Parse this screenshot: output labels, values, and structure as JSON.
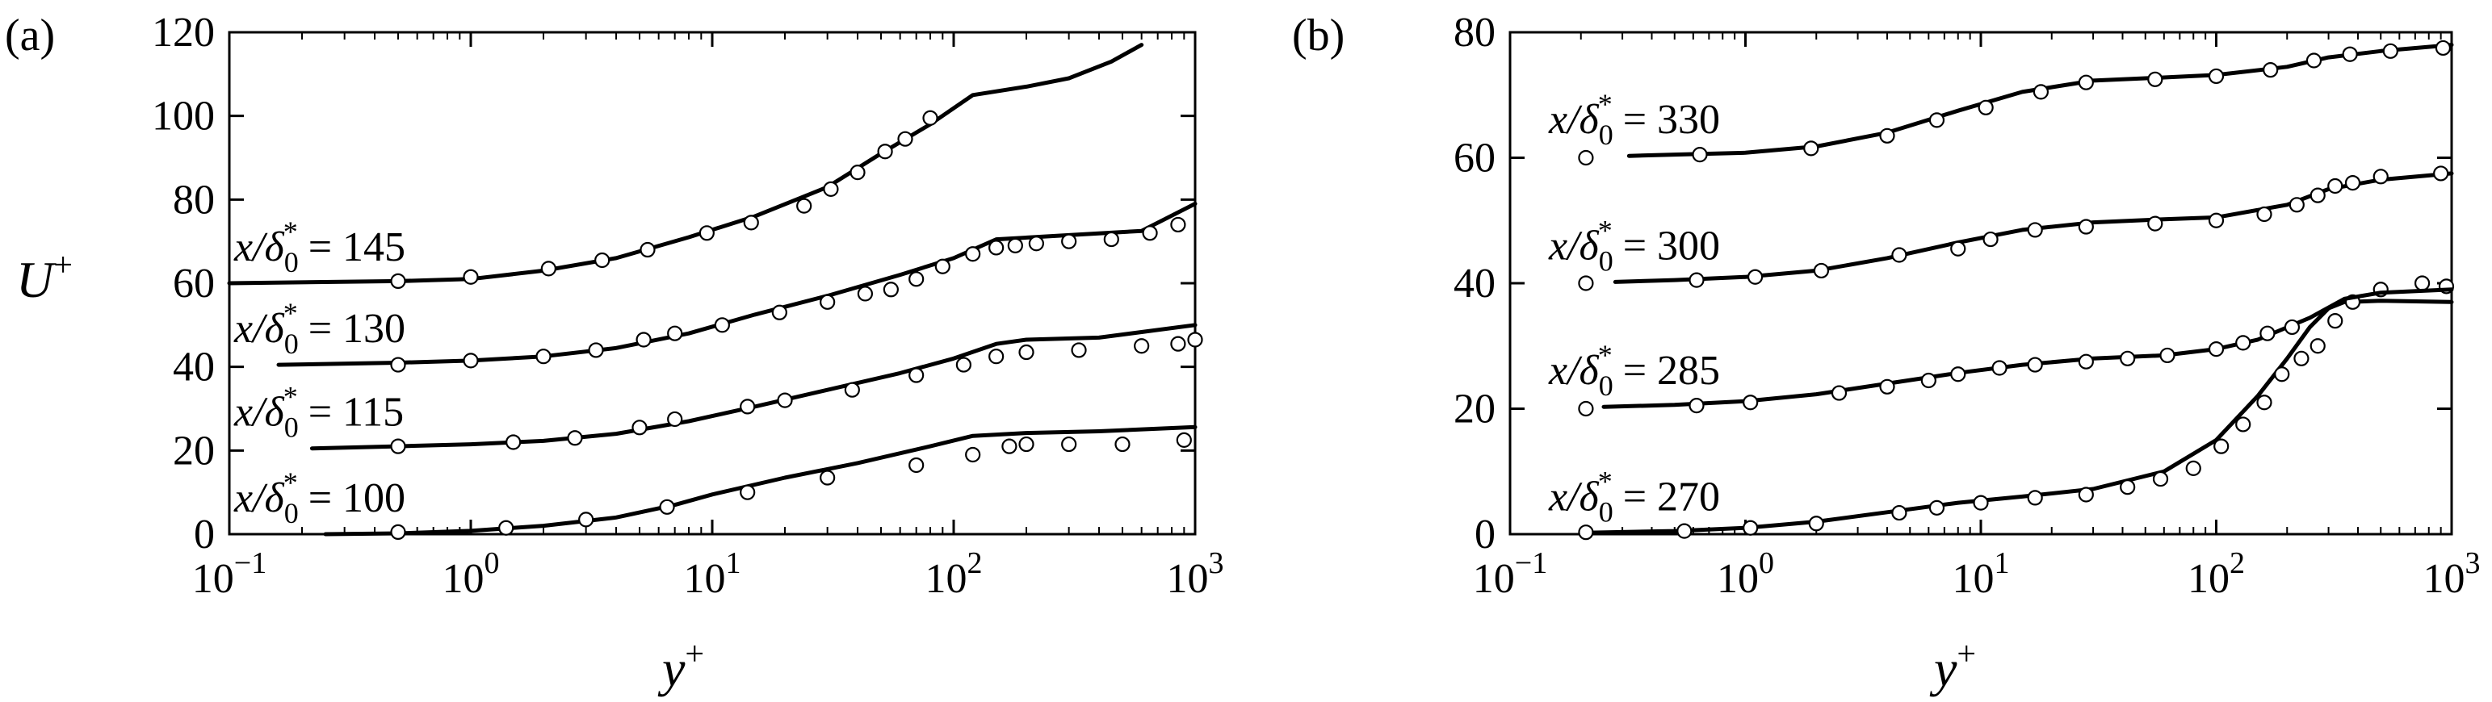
{
  "chart_data": [
    {
      "panel": "(a)",
      "type": "line",
      "xlabel": "y+",
      "ylabel": "U+",
      "xscale": "log",
      "xlim": [
        0.1,
        1000
      ],
      "ylim": [
        0,
        120
      ],
      "xtick_labels": [
        "10−1",
        "100",
        "101",
        "102",
        "103"
      ],
      "ytick_values": [
        0,
        20,
        40,
        60,
        80,
        100,
        120
      ],
      "series": [
        {
          "name": "x/δ0* = 100",
          "line": {
            "x": [
              0.25,
              0.5,
              1,
              2,
              4,
              7,
              10,
              20,
              40,
              80,
              120,
              200,
              400,
              1000
            ],
            "y": [
              0,
              0.2,
              0.8,
              2,
              4,
              7,
              9.5,
              13.5,
              17,
              21,
              23.5,
              24.2,
              24.6,
              25.6
            ]
          },
          "markers": {
            "x": [
              0.5,
              1.4,
              3,
              6.5,
              14,
              30,
              70,
              120,
              170,
              200,
              300,
              500,
              900
            ],
            "y": [
              0.5,
              1.5,
              3.5,
              6.5,
              10,
              13.5,
              16.5,
              19,
              21,
              21.5,
              21.5,
              21.5,
              22.5
            ]
          }
        },
        {
          "name": "x/δ0* = 115",
          "line": {
            "x": [
              0.22,
              0.5,
              1,
              2,
              4,
              8,
              15,
              30,
              60,
              100,
              150,
              200,
              400,
              1000
            ],
            "y": [
              20.5,
              21,
              21.5,
              22.3,
              24,
              27,
              30.5,
              34.5,
              38.5,
              42,
              45.5,
              46.5,
              47,
              50
            ]
          },
          "markers": {
            "x": [
              0.5,
              1.5,
              2.7,
              5,
              7,
              14,
              20,
              38,
              70,
              110,
              150,
              200,
              330,
              600,
              850,
              1000
            ],
            "y": [
              21,
              22,
              23,
              25.5,
              27.5,
              30.5,
              32,
              34.5,
              38,
              40.5,
              42.5,
              43.5,
              44,
              45,
              45.5,
              46.5
            ]
          }
        },
        {
          "name": "x/δ0* = 130",
          "line": {
            "x": [
              0.16,
              0.5,
              1,
              2,
              4,
              8,
              15,
              30,
              60,
              100,
              150,
              300,
              600,
              1000
            ],
            "y": [
              40.5,
              41,
              41.5,
              42.5,
              44.5,
              48,
              52.5,
              57,
              62,
              66,
              70.5,
              71.5,
              72.5,
              79
            ]
          },
          "markers": {
            "x": [
              0.5,
              1,
              2,
              3.3,
              5.2,
              7,
              11,
              19,
              30,
              43,
              55,
              70,
              90,
              120,
              150,
              180,
              220,
              300,
              450,
              650,
              850
            ],
            "y": [
              40.5,
              41.5,
              42.5,
              44,
              46.5,
              48,
              50,
              53,
              55.5,
              57.5,
              58.5,
              61,
              64,
              67,
              68.5,
              69,
              69.5,
              70,
              70.5,
              72,
              74
            ]
          }
        },
        {
          "name": "x/δ0* = 145",
          "line": {
            "x": [
              0.1,
              0.5,
              1,
              2,
              4,
              8,
              15,
              30,
              50,
              80,
              120,
              200,
              300,
              450,
              600
            ],
            "y": [
              60,
              60.5,
              61,
              63,
              66,
              71,
              76,
              83,
              91,
              98,
              105,
              107,
              109,
              113,
              117
            ]
          },
          "markers": {
            "x": [
              0.5,
              1,
              2.1,
              3.5,
              5.4,
              9.5,
              14.5,
              24,
              31,
              40,
              52,
              63,
              80
            ],
            "y": [
              60.5,
              61.5,
              63.5,
              65.5,
              68,
              72,
              74.5,
              78.5,
              82.5,
              86.5,
              91.5,
              94.5,
              99.5
            ]
          }
        }
      ]
    },
    {
      "panel": "(b)",
      "type": "line",
      "xlabel": "y+",
      "ylabel": "",
      "xscale": "log",
      "xlim": [
        0.1,
        1000
      ],
      "ylim": [
        0,
        80
      ],
      "xtick_labels": [
        "10−1",
        "100",
        "101",
        "102",
        "103"
      ],
      "ytick_values": [
        0,
        20,
        40,
        60,
        80
      ],
      "series": [
        {
          "name": "x/δ0* = 270",
          "line": {
            "x": [
              0.2,
              0.5,
              1,
              2,
              4,
              8,
              15,
              30,
              60,
              100,
              150,
              200,
              250,
              300,
              350,
              500,
              1000
            ],
            "y": [
              0.2,
              0.5,
              1,
              2,
              3.5,
              5,
              6,
              7.2,
              10,
              15,
              22,
              28,
              33,
              36,
              37,
              37.2,
              37
            ]
          },
          "markers": {
            "x": [
              0.21,
              0.55,
              1.05,
              2,
              4.5,
              6.5,
              10,
              17,
              28,
              42,
              58,
              80,
              105,
              130,
              160,
              190,
              230,
              270,
              320,
              380,
              500,
              750,
              950
            ],
            "y": [
              0.3,
              0.5,
              1,
              1.7,
              3.4,
              4.2,
              5,
              5.8,
              6.3,
              7.5,
              8.8,
              10.5,
              14,
              17.5,
              21,
              25.5,
              28,
              30,
              34,
              37,
              39,
              40,
              39.5
            ]
          }
        },
        {
          "name": "x/δ0* = 285",
          "line": {
            "x": [
              0.25,
              0.5,
              1,
              2,
              4,
              8,
              15,
              30,
              60,
              100,
              150,
              250,
              350,
              500,
              1000
            ],
            "y": [
              20.3,
              20.6,
              21.2,
              22.3,
              24,
              25.7,
              27,
              28,
              28.5,
              29.5,
              31,
              34.5,
              37.5,
              38.5,
              39
            ]
          },
          "markers": {
            "x": [
              0.21,
              0.62,
              1.05,
              2.5,
              4,
              6,
              8,
              12,
              17,
              28,
              42,
              62,
              100,
              130,
              165,
              210
            ],
            "y": [
              20,
              20.5,
              21,
              22.5,
              23.5,
              24.5,
              25.5,
              26.5,
              27,
              27.5,
              28,
              28.5,
              29.5,
              30.5,
              32,
              33
            ]
          }
        },
        {
          "name": "x/δ0* = 300",
          "line": {
            "x": [
              0.28,
              0.5,
              1,
              2,
              4,
              8,
              15,
              30,
              60,
              100,
              200,
              300,
              500,
              1000
            ],
            "y": [
              40.2,
              40.5,
              41,
              42,
              44,
              46.5,
              48.5,
              49.7,
              50.2,
              50.5,
              52.5,
              55,
              56.5,
              57.5
            ]
          },
          "markers": {
            "x": [
              0.21,
              0.62,
              1.1,
              2.1,
              4.5,
              8,
              11,
              17,
              28,
              55,
              100,
              160,
              220,
              270,
              320,
              380,
              500,
              900
            ],
            "y": [
              40,
              40.5,
              41,
              42,
              44.5,
              45.5,
              47,
              48.5,
              49,
              49.5,
              50,
              51,
              52.5,
              54,
              55.5,
              56,
              57,
              57.5
            ]
          }
        },
        {
          "name": "x/δ0* = 330",
          "line": {
            "x": [
              0.32,
              0.5,
              1,
              2,
              4,
              8,
              15,
              30,
              60,
              100,
              200,
              300,
              500,
              1000
            ],
            "y": [
              60.3,
              60.5,
              60.8,
              61.8,
              64,
              67.5,
              70.5,
              72.3,
              72.8,
              73.2,
              74.5,
              76,
              77,
              78
            ]
          },
          "markers": {
            "x": [
              0.21,
              0.64,
              1.9,
              4,
              6.5,
              10.5,
              18,
              28,
              55,
              100,
              170,
              260,
              370,
              550,
              920
            ],
            "y": [
              60,
              60.5,
              61.5,
              63.5,
              66,
              68,
              70.5,
              72,
              72.5,
              73,
              74,
              75.5,
              76.5,
              77,
              77.5
            ]
          }
        }
      ]
    }
  ]
}
